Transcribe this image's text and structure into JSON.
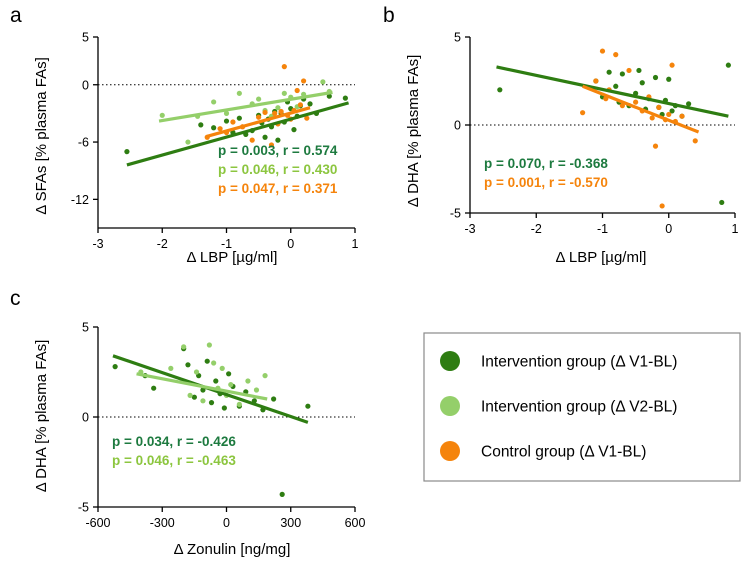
{
  "colors": {
    "intervention_v1": "#2e7d12",
    "intervention_v2": "#94cf6a",
    "control_v1": "#f5840c",
    "stat_v1": "#1d7a3f",
    "stat_v2": "#8cc63f",
    "stat_control": "#f5840c"
  },
  "legend": {
    "items": [
      {
        "label": "Intervention group (Δ V1-BL)",
        "color": "#2e7d12"
      },
      {
        "label": "Intervention group (Δ V2-BL)",
        "color": "#94cf6a"
      },
      {
        "label": "Control group (Δ V1-BL)",
        "color": "#f5840c"
      }
    ]
  },
  "chart_data": [
    {
      "panel": "a",
      "type": "scatter",
      "xlabel": "Δ LBP [µg/ml]",
      "ylabel": "Δ SFAs [% plasma FAs]",
      "xlim": [
        -3,
        1
      ],
      "ylim": [
        -15,
        5
      ],
      "xticks": [
        "-3",
        "-2",
        "-1",
        "0",
        "1"
      ],
      "xtick_values": [
        -3,
        -2,
        -1,
        0,
        1
      ],
      "yticks": [
        "5",
        "0",
        "-6",
        "-12"
      ],
      "ytick_values": [
        5,
        0,
        -6,
        -12
      ],
      "zero_line": 0,
      "annotations": [
        {
          "text": "p = 0.003, r = 0.574",
          "series": 0
        },
        {
          "text": "p = 0.046, r = 0.430",
          "series": 1
        },
        {
          "text": "p = 0.047, r = 0.371",
          "series": 2
        }
      ],
      "series": [
        {
          "name": "Intervention group (Δ V1-BL)",
          "x": [
            -2.55,
            -1.4,
            -1.2,
            -1.0,
            -0.9,
            -0.8,
            -0.7,
            -0.6,
            -0.5,
            -0.45,
            -0.4,
            -0.35,
            -0.3,
            -0.25,
            -0.2,
            -0.15,
            -0.1,
            -0.05,
            0.0,
            0.05,
            0.1,
            0.15,
            0.2,
            0.3,
            0.4,
            0.6,
            0.85
          ],
          "y": [
            -7.0,
            -4.2,
            -4.5,
            -3.8,
            -5.0,
            -3.5,
            -5.2,
            -4.8,
            -3.2,
            -4.0,
            -5.5,
            -3.6,
            -4.4,
            -2.8,
            -5.8,
            -3.0,
            -3.9,
            -1.8,
            -2.5,
            -4.7,
            -3.3,
            -2.2,
            -1.5,
            -2.0,
            -3.0,
            -1.2,
            -1.4
          ],
          "fit": {
            "x": [
              -2.55,
              0.9
            ],
            "y": [
              -8.4,
              -1.9
            ]
          }
        },
        {
          "name": "Intervention group (Δ V2-BL)",
          "x": [
            -2.0,
            -1.6,
            -1.45,
            -1.2,
            -1.0,
            -0.8,
            -0.6,
            -0.5,
            -0.4,
            -0.3,
            -0.2,
            -0.1,
            0.0,
            0.1,
            0.2,
            0.5,
            0.6
          ],
          "y": [
            -3.2,
            -6.0,
            -3.3,
            -1.8,
            -3.0,
            -0.9,
            -2.0,
            -1.5,
            -2.7,
            -3.3,
            -2.4,
            -0.9,
            -1.3,
            -2.3,
            -1.0,
            0.3,
            -0.7
          ],
          "fit": {
            "x": [
              -2.05,
              0.65
            ],
            "y": [
              -3.8,
              -0.8
            ]
          }
        },
        {
          "name": "Control group (Δ V1-BL)",
          "x": [
            -1.3,
            -1.1,
            -1.0,
            -0.9,
            -0.75,
            -0.6,
            -0.5,
            -0.4,
            -0.3,
            -0.25,
            -0.2,
            -0.15,
            -0.1,
            -0.05,
            0.0,
            0.05,
            0.1,
            0.15,
            0.2,
            0.25
          ],
          "y": [
            -5.5,
            -4.6,
            -5.0,
            -3.9,
            -4.4,
            -5.8,
            -3.4,
            -2.9,
            -6.3,
            -3.0,
            -4.1,
            -2.8,
            1.9,
            -3.2,
            -3.6,
            -2.7,
            -0.6,
            -2.1,
            0.4,
            -3.5
          ],
          "fit": {
            "x": [
              -1.3,
              0.3
            ],
            "y": [
              -5.4,
              -2.4
            ]
          }
        }
      ]
    },
    {
      "panel": "b",
      "type": "scatter",
      "xlabel": "Δ LBP [µg/ml]",
      "ylabel": "Δ DHA [% plasma FAs]",
      "xlim": [
        -3,
        1
      ],
      "ylim": [
        -5,
        5
      ],
      "xticks": [
        "-3",
        "-2",
        "-1",
        "0",
        "1"
      ],
      "xtick_values": [
        -3,
        -2,
        -1,
        0,
        1
      ],
      "yticks": [
        "5",
        "0",
        "-5"
      ],
      "ytick_values": [
        5,
        0,
        -5
      ],
      "zero_line": 0,
      "annotations": [
        {
          "text": "p = 0.070, r = -0.368",
          "series": 0
        },
        {
          "text": "p = 0.001, r = -0.570",
          "series": 2
        }
      ],
      "series": [
        {
          "name": "Intervention group (Δ V1-BL)",
          "x": [
            -2.55,
            -1.1,
            -1.0,
            -0.9,
            -0.8,
            -0.75,
            -0.7,
            -0.6,
            -0.5,
            -0.45,
            -0.4,
            -0.35,
            -0.3,
            -0.2,
            -0.15,
            -0.1,
            -0.05,
            0.0,
            0.05,
            0.1,
            0.2,
            0.3,
            0.8,
            0.9
          ],
          "y": [
            2.0,
            2.5,
            1.6,
            3.0,
            2.2,
            1.3,
            2.9,
            1.1,
            1.8,
            3.1,
            2.4,
            0.9,
            1.5,
            2.7,
            1.0,
            0.6,
            1.4,
            2.6,
            0.8,
            1.1,
            0.5,
            1.2,
            -4.4,
            3.4
          ],
          "fit": {
            "x": [
              -2.6,
              0.9
            ],
            "y": [
              3.3,
              0.5
            ]
          }
        },
        {
          "name": "Control group (Δ V1-BL)",
          "x": [
            -1.3,
            -1.1,
            -1.0,
            -0.95,
            -0.9,
            -0.8,
            -0.7,
            -0.6,
            -0.5,
            -0.4,
            -0.3,
            -0.25,
            -0.2,
            -0.15,
            -0.1,
            -0.05,
            0.0,
            0.05,
            0.1,
            0.2,
            0.4
          ],
          "y": [
            0.7,
            2.5,
            4.2,
            1.5,
            2.0,
            4.0,
            1.1,
            3.1,
            1.3,
            0.8,
            1.6,
            0.4,
            -1.2,
            1.0,
            -4.6,
            0.3,
            0.6,
            3.4,
            0.2,
            0.5,
            -0.9
          ],
          "fit": {
            "x": [
              -1.3,
              0.45
            ],
            "y": [
              2.2,
              -0.4
            ]
          }
        }
      ]
    },
    {
      "panel": "c",
      "type": "scatter",
      "xlabel": "Δ Zonulin [ng/mg]",
      "ylabel": "Δ DHA [% plasma FAs]",
      "xlim": [
        -600,
        600
      ],
      "ylim": [
        -5,
        5
      ],
      "xticks": [
        "-600",
        "-300",
        "0",
        "300",
        "600"
      ],
      "xtick_values": [
        -600,
        -300,
        0,
        300,
        600
      ],
      "yticks": [
        "5",
        "0",
        "-5"
      ],
      "ytick_values": [
        5,
        0,
        -5
      ],
      "zero_line": 0,
      "annotations": [
        {
          "text": "p = 0.034, r = -0.426",
          "series": 0
        },
        {
          "text": "p = 0.046, r = -0.463",
          "series": 1
        }
      ],
      "series": [
        {
          "name": "Intervention group (Δ V1-BL)",
          "x": [
            -520,
            -380,
            -340,
            -200,
            -180,
            -150,
            -130,
            -110,
            -90,
            -70,
            -50,
            -30,
            -10,
            10,
            30,
            60,
            90,
            130,
            170,
            220,
            260,
            380
          ],
          "y": [
            2.8,
            2.3,
            1.6,
            3.8,
            2.9,
            1.1,
            2.3,
            1.5,
            3.1,
            0.8,
            2.0,
            1.3,
            0.5,
            2.4,
            1.7,
            0.6,
            1.4,
            0.9,
            0.4,
            1.0,
            -4.3,
            0.6
          ],
          "fit": {
            "x": [
              -530,
              380
            ],
            "y": [
              3.4,
              -0.3
            ]
          }
        },
        {
          "name": "Intervention group (Δ V2-BL)",
          "x": [
            -400,
            -260,
            -200,
            -170,
            -140,
            -110,
            -80,
            -60,
            -40,
            -20,
            0,
            20,
            60,
            100,
            140,
            180
          ],
          "y": [
            2.5,
            2.7,
            3.9,
            1.2,
            2.5,
            0.9,
            4.0,
            3.0,
            1.6,
            2.7,
            1.2,
            1.8,
            0.7,
            2.0,
            1.5,
            2.3
          ],
          "fit": {
            "x": [
              -420,
              190
            ],
            "y": [
              2.4,
              1.0
            ]
          }
        }
      ]
    }
  ]
}
